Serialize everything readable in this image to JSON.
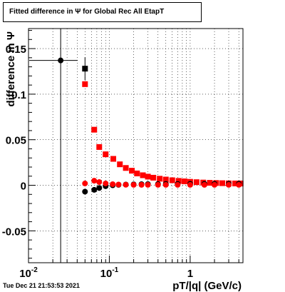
{
  "chart_data": {
    "type": "scatter",
    "title": "Fitted difference in  Ψ  for Global Rec All EtapT",
    "xlabel": "pT/|q| (GeV/c)",
    "ylabel": "difference in  Ψ",
    "x_scale": "log",
    "xlim": [
      0.01,
      4.5
    ],
    "ylim": [
      -0.085,
      0.172
    ],
    "x_ticks": [
      {
        "value": 0.01,
        "label": "10",
        "exp": "-2"
      },
      {
        "value": 0.1,
        "label": "10",
        "exp": "-1"
      },
      {
        "value": 1,
        "label": "1",
        "exp": ""
      }
    ],
    "y_ticks": [
      {
        "value": 0.15,
        "label": "0.15"
      },
      {
        "value": 0.1,
        "label": "0.1"
      },
      {
        "value": 0.05,
        "label": "0.05"
      },
      {
        "value": 0,
        "label": "0"
      },
      {
        "value": -0.05,
        "label": "-0.05"
      }
    ],
    "grid": true,
    "series": [
      {
        "color": "#000000",
        "marker": "square",
        "points": [
          [
            0.05,
            0.128
          ],
          [
            4.2,
            0.002
          ]
        ]
      },
      {
        "color": "#ff0000",
        "marker": "square",
        "points": [
          [
            0.05,
            0.111
          ],
          [
            0.065,
            0.061
          ],
          [
            0.075,
            0.042
          ],
          [
            0.09,
            0.034
          ],
          [
            0.112,
            0.029
          ],
          [
            0.135,
            0.023
          ],
          [
            0.16,
            0.019
          ],
          [
            0.19,
            0.016
          ],
          [
            0.22,
            0.013
          ],
          [
            0.26,
            0.011
          ],
          [
            0.3,
            0.0095
          ],
          [
            0.35,
            0.0083
          ],
          [
            0.42,
            0.0072
          ],
          [
            0.5,
            0.0063
          ],
          [
            0.6,
            0.0055
          ],
          [
            0.72,
            0.0048
          ],
          [
            0.85,
            0.0043
          ],
          [
            1.0,
            0.0038
          ],
          [
            1.2,
            0.0034
          ],
          [
            1.45,
            0.003
          ],
          [
            1.75,
            0.0027
          ],
          [
            2.1,
            0.0025
          ],
          [
            2.5,
            0.0023
          ],
          [
            3.0,
            0.0021
          ],
          [
            3.6,
            0.002
          ],
          [
            4.2,
            0.0019
          ]
        ]
      },
      {
        "color": "#000000",
        "marker": "circle",
        "points": [
          [
            0.025,
            0.137
          ],
          [
            0.05,
            -0.007
          ],
          [
            0.065,
            -0.005
          ],
          [
            0.075,
            -0.003
          ],
          [
            0.09,
            -0.001
          ],
          [
            0.11,
            0.0
          ],
          [
            0.13,
            0.0005
          ],
          [
            0.16,
            0.0008
          ],
          [
            0.2,
            0.001
          ],
          [
            0.25,
            0.0012
          ],
          [
            0.3,
            0.0013
          ],
          [
            0.4,
            0.0014
          ],
          [
            0.5,
            0.0015
          ],
          [
            0.7,
            0.0015
          ],
          [
            1.0,
            0.0016
          ],
          [
            1.5,
            0.0016
          ],
          [
            2.0,
            0.0016
          ],
          [
            3.0,
            0.0016
          ],
          [
            4.0,
            0.0016
          ]
        ]
      },
      {
        "color": "#ff0000",
        "marker": "circle",
        "points": [
          [
            0.05,
            0.002
          ],
          [
            0.065,
            0.005
          ],
          [
            0.075,
            0.0035
          ],
          [
            0.09,
            0.002
          ],
          [
            0.11,
            0.0012
          ],
          [
            0.13,
            0.0008
          ],
          [
            0.16,
            0.0006
          ],
          [
            0.2,
            0.0005
          ],
          [
            0.25,
            0.0005
          ],
          [
            0.3,
            0.0005
          ],
          [
            0.4,
            0.0005
          ],
          [
            0.5,
            0.0005
          ],
          [
            0.7,
            0.0005
          ],
          [
            1.0,
            0.0005
          ],
          [
            1.5,
            0.0005
          ],
          [
            2.0,
            0.0005
          ],
          [
            3.0,
            0.0005
          ],
          [
            4.0,
            0.0005
          ]
        ]
      }
    ]
  },
  "footer": {
    "timestamp": "Tue Dec 21 21:53:53 2021"
  }
}
